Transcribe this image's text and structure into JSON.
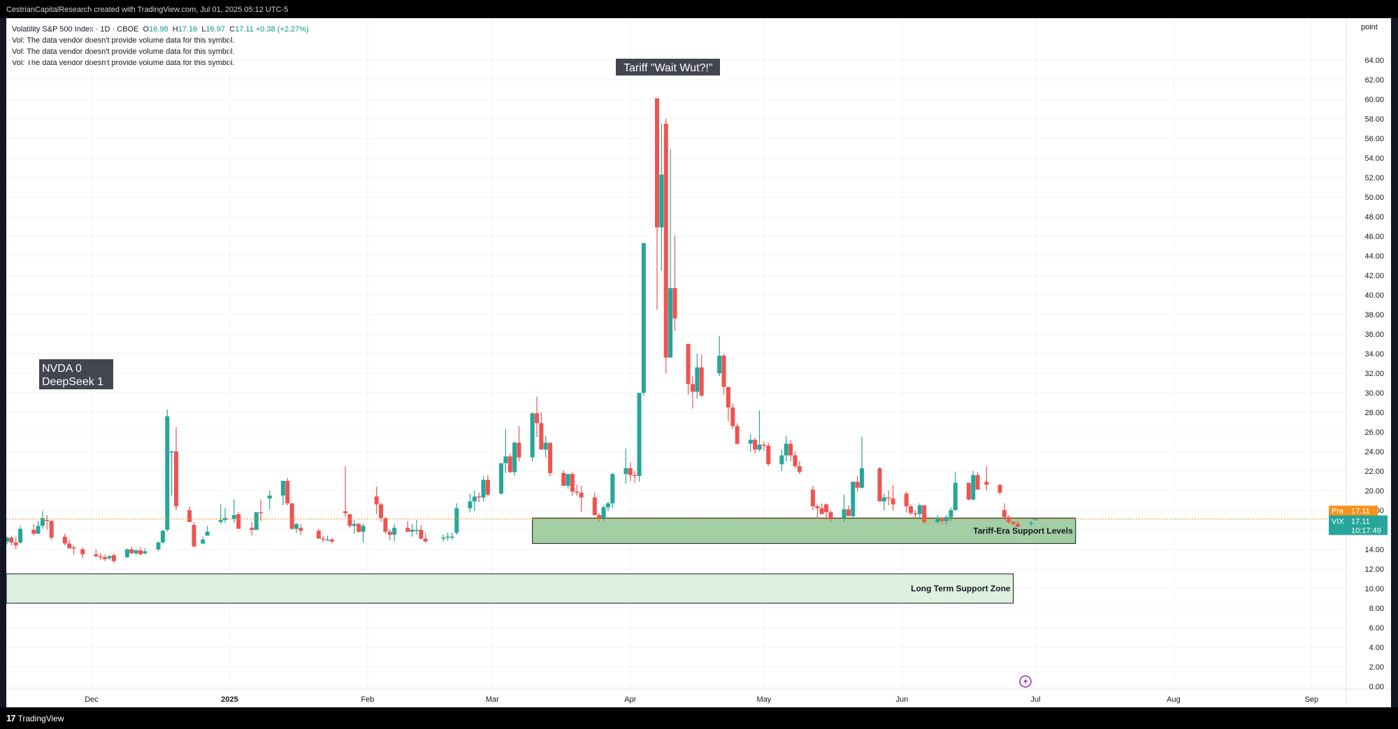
{
  "header": {
    "attribution": "CestrianCapitalResearch created with TradingView.com, Jul 01, 2025 05:12 UTC-5"
  },
  "legend": {
    "symbol": "Volatility S&P 500 Index · 1D · CBOE",
    "o_label": "O",
    "o_value": "16.98",
    "h_label": "H",
    "h_value": "17.16",
    "l_label": "L",
    "l_value": "16.97",
    "c_label": "C",
    "c_value": "17.11",
    "change": "+0.38 (+2.27%)",
    "vol_notes": [
      "Vol: The data vendor doesn't provide volume data for this symbol.",
      "Vol: The data vendor doesn't provide volume data for this symbol.",
      "Vol: The data vendor doesn't provide volume data for this symbol."
    ]
  },
  "price_scale": {
    "unit": "point"
  },
  "price_tags": {
    "pre_label": "Pre",
    "pre_value": "17.11",
    "vix_label": "VIX",
    "vix_value": "17.11",
    "countdown": "10:17:49"
  },
  "annotations": {
    "tariff": "Tariff \"Wait Wut?!\"",
    "nvda_line1": "NVDA 0",
    "nvda_line2": "DeepSeek 1",
    "tariff_support": "Tariff-Era Support Levels",
    "long_term_support": "Long Term Support Zone"
  },
  "footer": {
    "brand": "TradingView"
  },
  "colors": {
    "up": "#26a69a",
    "down": "#ef5350",
    "zone": "#9fcc9f",
    "zone_light": "#dff0df",
    "pre": "#f7931a"
  },
  "chart_data": {
    "type": "candlestick",
    "title": "Volatility S&P 500 Index · 1D · CBOE",
    "ylabel": "point",
    "ylim": [
      0,
      64
    ],
    "y_ticks": [
      "0.00",
      "2.00",
      "4.00",
      "6.00",
      "8.00",
      "10.00",
      "12.00",
      "14.00",
      "16.00",
      "18.00",
      "20.00",
      "22.00",
      "24.00",
      "26.00",
      "28.00",
      "30.00",
      "32.00",
      "34.00",
      "36.00",
      "38.00",
      "40.00",
      "42.00",
      "44.00",
      "46.00",
      "48.00",
      "50.00",
      "52.00",
      "54.00",
      "56.00",
      "58.00",
      "60.00",
      "62.00",
      "64.00"
    ],
    "x_ticks": [
      {
        "label": "Dec",
        "date": "2024-12-01"
      },
      {
        "label": "2025",
        "date": "2025-01-01",
        "bold": true
      },
      {
        "label": "Feb",
        "date": "2025-02-01"
      },
      {
        "label": "Mar",
        "date": "2025-03-01"
      },
      {
        "label": "Apr",
        "date": "2025-04-01"
      },
      {
        "label": "May",
        "date": "2025-05-01"
      },
      {
        "label": "Jun",
        "date": "2025-06-01"
      },
      {
        "label": "Jul",
        "date": "2025-07-01"
      },
      {
        "label": "Aug",
        "date": "2025-08-01"
      },
      {
        "label": "Sep",
        "date": "2025-09-01"
      }
    ],
    "last_close": 17.11,
    "zones": [
      {
        "name": "Tariff-Era Support Levels",
        "from": "2025-03-10",
        "to": "2025-07-10",
        "low": 14.6,
        "high": 17.2
      },
      {
        "name": "Long Term Support Zone",
        "from": "2024-11-11",
        "to": "2025-06-26",
        "low": 8.5,
        "high": 11.5
      }
    ],
    "candles": [
      [
        "2024-11-12",
        14.8,
        15.3,
        14.5,
        15.2
      ],
      [
        "2024-11-13",
        15.2,
        15.4,
        14.4,
        14.7
      ],
      [
        "2024-11-14",
        14.7,
        15.3,
        14.0,
        14.4
      ],
      [
        "2024-11-15",
        14.7,
        16.4,
        14.6,
        16.1
      ],
      [
        "2024-11-18",
        16.0,
        16.6,
        15.4,
        15.6
      ],
      [
        "2024-11-19",
        15.6,
        16.9,
        15.6,
        16.4
      ],
      [
        "2024-11-20",
        16.4,
        17.9,
        16.1,
        17.2
      ],
      [
        "2024-11-21",
        17.0,
        17.5,
        16.0,
        16.9
      ],
      [
        "2024-11-22",
        16.9,
        17.0,
        15.0,
        15.2
      ],
      [
        "2024-11-25",
        15.3,
        15.6,
        14.4,
        14.6
      ],
      [
        "2024-11-26",
        14.6,
        15.0,
        14.2,
        14.1
      ],
      [
        "2024-11-27",
        14.2,
        14.4,
        13.5,
        14.1
      ],
      [
        "2024-11-29",
        14.0,
        14.2,
        13.1,
        13.5
      ],
      [
        "2024-12-02",
        13.5,
        14.0,
        13.2,
        13.3
      ],
      [
        "2024-12-03",
        13.3,
        13.6,
        12.9,
        13.2
      ],
      [
        "2024-12-04",
        13.2,
        13.5,
        12.8,
        13.0
      ],
      [
        "2024-12-05",
        13.1,
        13.4,
        12.9,
        13.3
      ],
      [
        "2024-12-06",
        13.4,
        13.6,
        12.6,
        12.8
      ],
      [
        "2024-12-09",
        13.2,
        14.1,
        13.1,
        14.0
      ],
      [
        "2024-12-10",
        14.0,
        14.3,
        13.5,
        13.6
      ],
      [
        "2024-12-11",
        13.6,
        14.0,
        13.4,
        13.9
      ],
      [
        "2024-12-12",
        13.9,
        14.2,
        13.4,
        13.5
      ],
      [
        "2024-12-13",
        13.6,
        14.1,
        13.5,
        13.8
      ],
      [
        "2024-12-16",
        14.0,
        14.8,
        13.8,
        14.7
      ],
      [
        "2024-12-17",
        14.7,
        16.0,
        14.6,
        15.9
      ],
      [
        "2024-12-18",
        16.0,
        28.3,
        15.8,
        27.6
      ],
      [
        "2024-12-19",
        24.0,
        24.1,
        19.5,
        24.0
      ],
      [
        "2024-12-20",
        24.0,
        26.5,
        18.0,
        18.4
      ],
      [
        "2024-12-23",
        18.0,
        18.4,
        16.8,
        16.8
      ],
      [
        "2024-12-24",
        16.5,
        16.8,
        14.2,
        14.3
      ],
      [
        "2024-12-26",
        14.6,
        15.3,
        14.5,
        15.0
      ],
      [
        "2024-12-27",
        15.4,
        16.4,
        15.4,
        15.8
      ],
      [
        "2024-12-30",
        16.8,
        18.6,
        16.6,
        17.0
      ],
      [
        "2024-12-31",
        17.0,
        18.2,
        16.7,
        17.2
      ],
      [
        "2025-01-02",
        17.1,
        19.1,
        16.7,
        17.5
      ],
      [
        "2025-01-03",
        17.6,
        17.8,
        16.2,
        16.1
      ],
      [
        "2025-01-06",
        16.2,
        16.8,
        15.4,
        16.0
      ],
      [
        "2025-01-07",
        16.0,
        17.8,
        16.0,
        17.8
      ],
      [
        "2025-01-08",
        17.8,
        19.1,
        16.9,
        17.7
      ],
      [
        "2025-01-10",
        19.2,
        20.0,
        18.1,
        19.5
      ],
      [
        "2025-01-13",
        19.5,
        21.0,
        18.5,
        21.0
      ],
      [
        "2025-01-14",
        21.0,
        21.3,
        18.5,
        18.7
      ],
      [
        "2025-01-15",
        18.7,
        18.7,
        16.0,
        16.1
      ],
      [
        "2025-01-16",
        16.1,
        16.7,
        15.7,
        16.6
      ],
      [
        "2025-01-17",
        16.2,
        16.6,
        15.5,
        15.9
      ],
      [
        "2025-01-21",
        15.9,
        16.1,
        15.2,
        15.1
      ],
      [
        "2025-01-22",
        15.1,
        15.4,
        14.7,
        15.0
      ],
      [
        "2025-01-23",
        15.0,
        15.4,
        14.9,
        15.0
      ],
      [
        "2025-01-24",
        15.0,
        15.2,
        14.6,
        14.8
      ],
      [
        "2025-01-27",
        17.9,
        22.5,
        17.3,
        17.7
      ],
      [
        "2025-01-28",
        17.6,
        17.6,
        16.2,
        16.4
      ],
      [
        "2025-01-29",
        16.4,
        17.0,
        15.6,
        16.6
      ],
      [
        "2025-01-30",
        16.6,
        16.7,
        15.7,
        15.8
      ],
      [
        "2025-01-31",
        15.8,
        16.6,
        14.7,
        16.4
      ],
      [
        "2025-02-03",
        19.4,
        20.4,
        17.6,
        18.6
      ],
      [
        "2025-02-04",
        18.6,
        18.8,
        16.8,
        17.2
      ],
      [
        "2025-02-05",
        17.2,
        17.3,
        15.6,
        15.8
      ],
      [
        "2025-02-06",
        15.8,
        16.0,
        14.9,
        15.5
      ],
      [
        "2025-02-07",
        15.5,
        16.6,
        14.8,
        16.2
      ],
      [
        "2025-02-10",
        16.2,
        16.9,
        15.8,
        15.8
      ],
      [
        "2025-02-11",
        15.8,
        16.6,
        15.3,
        16.0
      ],
      [
        "2025-02-12",
        16.0,
        17.0,
        15.5,
        16.0
      ],
      [
        "2025-02-13",
        16.0,
        16.5,
        15.0,
        15.1
      ],
      [
        "2025-02-14",
        15.1,
        15.6,
        14.7,
        14.8
      ],
      [
        "2025-02-18",
        15.2,
        15.5,
        14.8,
        15.2
      ],
      [
        "2025-02-19",
        15.2,
        15.7,
        14.9,
        15.3
      ],
      [
        "2025-02-20",
        15.3,
        15.7,
        15.0,
        15.3
      ],
      [
        "2025-02-21",
        15.7,
        18.7,
        15.5,
        18.2
      ],
      [
        "2025-02-24",
        18.2,
        19.7,
        17.8,
        18.9
      ],
      [
        "2025-02-25",
        18.9,
        20.0,
        17.9,
        19.4
      ],
      [
        "2025-02-26",
        19.4,
        19.8,
        18.8,
        19.3
      ],
      [
        "2025-02-27",
        19.3,
        21.5,
        18.9,
        21.1
      ],
      [
        "2025-02-28",
        21.1,
        21.6,
        19.4,
        19.6
      ],
      [
        "2025-03-03",
        19.7,
        22.8,
        19.6,
        22.8
      ],
      [
        "2025-03-04",
        22.8,
        26.3,
        21.8,
        23.5
      ],
      [
        "2025-03-05",
        23.5,
        23.8,
        21.8,
        21.9
      ],
      [
        "2025-03-06",
        21.9,
        25.0,
        21.5,
        24.9
      ],
      [
        "2025-03-07",
        24.9,
        26.6,
        23.0,
        23.4
      ],
      [
        "2025-03-10",
        23.4,
        28.0,
        23.0,
        27.9
      ],
      [
        "2025-03-11",
        27.9,
        29.6,
        25.5,
        26.9
      ],
      [
        "2025-03-12",
        26.9,
        28.0,
        24.8,
        24.2
      ],
      [
        "2025-03-13",
        24.2,
        25.6,
        23.4,
        24.9
      ],
      [
        "2025-03-14",
        24.9,
        24.9,
        21.5,
        21.8
      ],
      [
        "2025-03-17",
        21.8,
        22.1,
        20.5,
        20.5
      ],
      [
        "2025-03-18",
        20.5,
        21.7,
        20.2,
        21.7
      ],
      [
        "2025-03-19",
        21.7,
        21.9,
        19.5,
        19.9
      ],
      [
        "2025-03-20",
        19.9,
        20.6,
        19.5,
        19.8
      ],
      [
        "2025-03-21",
        19.8,
        20.5,
        17.8,
        19.3
      ],
      [
        "2025-03-24",
        19.3,
        19.8,
        17.5,
        17.5
      ],
      [
        "2025-03-25",
        17.5,
        17.7,
        16.8,
        17.2
      ],
      [
        "2025-03-26",
        17.2,
        18.5,
        16.9,
        18.3
      ],
      [
        "2025-03-27",
        18.3,
        18.9,
        17.9,
        18.7
      ],
      [
        "2025-03-28",
        18.7,
        21.8,
        18.2,
        21.7
      ],
      [
        "2025-03-31",
        21.7,
        24.3,
        20.7,
        22.3
      ],
      [
        "2025-04-01",
        22.3,
        22.9,
        21.0,
        21.6
      ],
      [
        "2025-04-02",
        21.6,
        22.0,
        20.8,
        21.5
      ],
      [
        "2025-04-03",
        21.5,
        30.0,
        20.9,
        30.0
      ],
      [
        "2025-04-04",
        30.0,
        45.3,
        29.7,
        45.3
      ],
      [
        "2025-04-07",
        60.1,
        60.1,
        38.5,
        46.9
      ],
      [
        "2025-04-08",
        46.9,
        57.5,
        42.5,
        52.3
      ],
      [
        "2025-04-09",
        57.5,
        58.0,
        32.0,
        33.6
      ],
      [
        "2025-04-10",
        33.6,
        54.9,
        33.6,
        40.7
      ],
      [
        "2025-04-11",
        40.7,
        46.1,
        36.3,
        37.6
      ],
      [
        "2025-04-14",
        35.0,
        35.0,
        29.8,
        30.9
      ],
      [
        "2025-04-15",
        30.9,
        31.7,
        28.4,
        30.1
      ],
      [
        "2025-04-16",
        30.1,
        34.0,
        29.4,
        32.6
      ],
      [
        "2025-04-17",
        32.6,
        33.9,
        29.6,
        29.7
      ],
      [
        "2025-04-21",
        32.0,
        35.8,
        31.7,
        33.8
      ],
      [
        "2025-04-22",
        33.8,
        34.0,
        29.8,
        30.6
      ],
      [
        "2025-04-23",
        30.6,
        30.6,
        27.1,
        28.5
      ],
      [
        "2025-04-24",
        28.5,
        28.9,
        26.3,
        26.6
      ],
      [
        "2025-04-25",
        26.6,
        26.9,
        24.7,
        24.8
      ],
      [
        "2025-04-28",
        24.8,
        25.8,
        24.0,
        25.2
      ],
      [
        "2025-04-29",
        25.2,
        25.4,
        23.8,
        24.2
      ],
      [
        "2025-04-30",
        24.2,
        28.2,
        24.0,
        24.7
      ],
      [
        "2025-05-01",
        24.7,
        25.0,
        24.1,
        24.6
      ],
      [
        "2025-05-02",
        24.6,
        24.9,
        22.5,
        22.7
      ],
      [
        "2025-05-05",
        22.7,
        24.2,
        22.0,
        23.6
      ],
      [
        "2025-05-06",
        23.6,
        25.6,
        23.0,
        24.8
      ],
      [
        "2025-05-07",
        24.8,
        25.2,
        23.0,
        23.6
      ],
      [
        "2025-05-08",
        23.6,
        24.0,
        22.3,
        22.5
      ],
      [
        "2025-05-09",
        22.5,
        23.0,
        21.7,
        21.9
      ],
      [
        "2025-05-12",
        20.1,
        20.5,
        18.0,
        18.4
      ],
      [
        "2025-05-13",
        18.4,
        18.6,
        17.2,
        18.2
      ],
      [
        "2025-05-14",
        18.2,
        18.7,
        17.8,
        17.6
      ],
      [
        "2025-05-15",
        18.6,
        18.7,
        17.0,
        17.8
      ],
      [
        "2025-05-16",
        17.8,
        18.0,
        16.8,
        17.2
      ],
      [
        "2025-05-19",
        17.2,
        19.6,
        16.8,
        18.1
      ],
      [
        "2025-05-20",
        18.1,
        18.5,
        17.6,
        17.4
      ],
      [
        "2025-05-21",
        17.4,
        21.0,
        17.1,
        20.9
      ],
      [
        "2025-05-22",
        20.9,
        21.5,
        19.9,
        20.3
      ],
      [
        "2025-05-23",
        20.3,
        25.5,
        20.2,
        22.3
      ],
      [
        "2025-05-27",
        22.3,
        22.4,
        18.9,
        18.9
      ],
      [
        "2025-05-28",
        18.9,
        19.7,
        18.0,
        19.3
      ],
      [
        "2025-05-29",
        19.3,
        20.0,
        18.5,
        19.2
      ],
      [
        "2025-05-30",
        19.2,
        20.6,
        18.0,
        18.6
      ],
      [
        "2025-06-02",
        19.7,
        19.9,
        17.8,
        18.4
      ],
      [
        "2025-06-03",
        18.4,
        18.6,
        17.5,
        17.7
      ],
      [
        "2025-06-04",
        17.7,
        18.0,
        17.2,
        17.6
      ],
      [
        "2025-06-05",
        17.6,
        18.7,
        17.1,
        18.5
      ],
      [
        "2025-06-06",
        18.5,
        18.5,
        16.6,
        16.8
      ],
      [
        "2025-06-09",
        16.8,
        17.5,
        16.6,
        17.2
      ],
      [
        "2025-06-10",
        17.2,
        17.3,
        16.6,
        16.9
      ],
      [
        "2025-06-11",
        16.9,
        17.5,
        16.5,
        17.3
      ],
      [
        "2025-06-12",
        17.3,
        18.3,
        16.9,
        18.0
      ],
      [
        "2025-06-13",
        18.0,
        21.9,
        18.0,
        20.8
      ],
      [
        "2025-06-16",
        20.8,
        20.8,
        19.0,
        19.1
      ],
      [
        "2025-06-17",
        19.1,
        22.0,
        19.0,
        21.6
      ],
      [
        "2025-06-18",
        21.6,
        21.9,
        20.1,
        20.1
      ],
      [
        "2025-06-20",
        20.9,
        22.5,
        20.0,
        20.6
      ],
      [
        "2025-06-23",
        20.6,
        20.6,
        19.6,
        19.8
      ],
      [
        "2025-06-24",
        18.0,
        18.7,
        17.0,
        17.3
      ],
      [
        "2025-06-25",
        17.3,
        17.5,
        16.6,
        16.8
      ],
      [
        "2025-06-26",
        16.8,
        16.9,
        16.4,
        16.6
      ],
      [
        "2025-06-27",
        16.6,
        16.9,
        16.3,
        16.3
      ],
      [
        "2025-06-30",
        16.7,
        16.9,
        16.4,
        16.7
      ],
      [
        "2025-07-01",
        16.98,
        17.16,
        16.97,
        17.11
      ]
    ]
  }
}
